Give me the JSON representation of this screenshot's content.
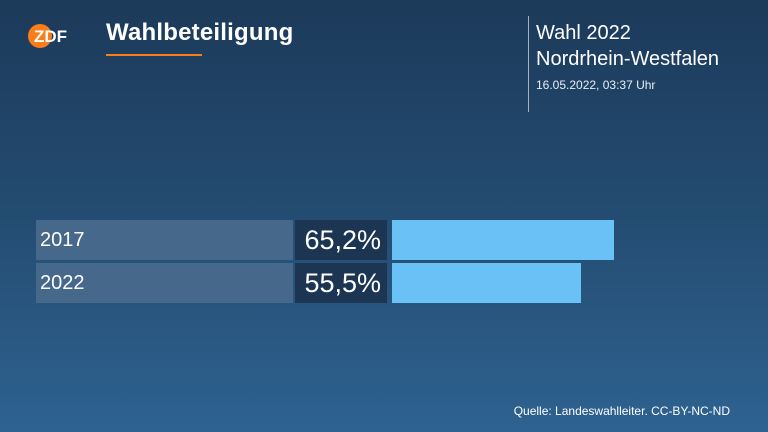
{
  "header": {
    "logo_text": "ZDF",
    "title": "Wahlbeteiligung",
    "election_line1": "Wahl 2022",
    "election_line2": "Nordrhein-Westfalen",
    "timestamp": "16.05.2022, 03:37 Uhr"
  },
  "colors": {
    "accent": "#fa7d19",
    "bar": "#6ac1f5",
    "label_bg": "#46688a",
    "value_bg": "#1b3552"
  },
  "chart_data": {
    "type": "bar",
    "orientation": "horizontal",
    "title": "Wahlbeteiligung",
    "categories": [
      "2017",
      "2022"
    ],
    "values": [
      65.2,
      55.5
    ],
    "value_labels": [
      "65,2%",
      "55,5%"
    ],
    "unit": "%",
    "xlim": [
      0,
      100
    ],
    "grid": false
  },
  "footer": {
    "source": "Quelle: Landeswahlleiter. CC-BY-NC-ND"
  }
}
